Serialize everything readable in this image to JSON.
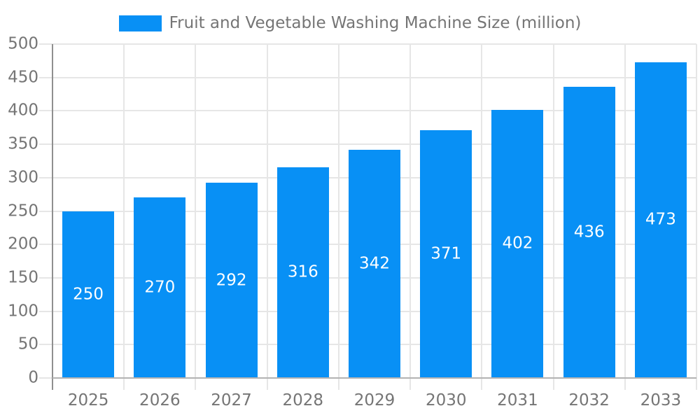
{
  "chart_data": {
    "type": "bar",
    "title": "Fruit and Vegetable Washing Machine Size (million)",
    "categories": [
      "2025",
      "2026",
      "2027",
      "2028",
      "2029",
      "2030",
      "2031",
      "2032",
      "2033"
    ],
    "values": [
      250,
      270,
      292,
      316,
      342,
      371,
      402,
      436,
      473
    ],
    "xlabel": "",
    "ylabel": "",
    "ylim": [
      0,
      500
    ],
    "yticks": [
      0,
      50,
      100,
      150,
      200,
      250,
      300,
      350,
      400,
      450,
      500
    ],
    "grid": true,
    "legend_position": "top-center",
    "bar_value_labels_inside": true,
    "colors": {
      "bar": "#0890f5",
      "bar_value_label": "#ffffff",
      "axis_text": "#757575",
      "gridline": "#e6e6e6",
      "y_axis_line": "#8f8f8f",
      "x_axis_line": "#b3b3b3",
      "background": "#ffffff"
    }
  }
}
